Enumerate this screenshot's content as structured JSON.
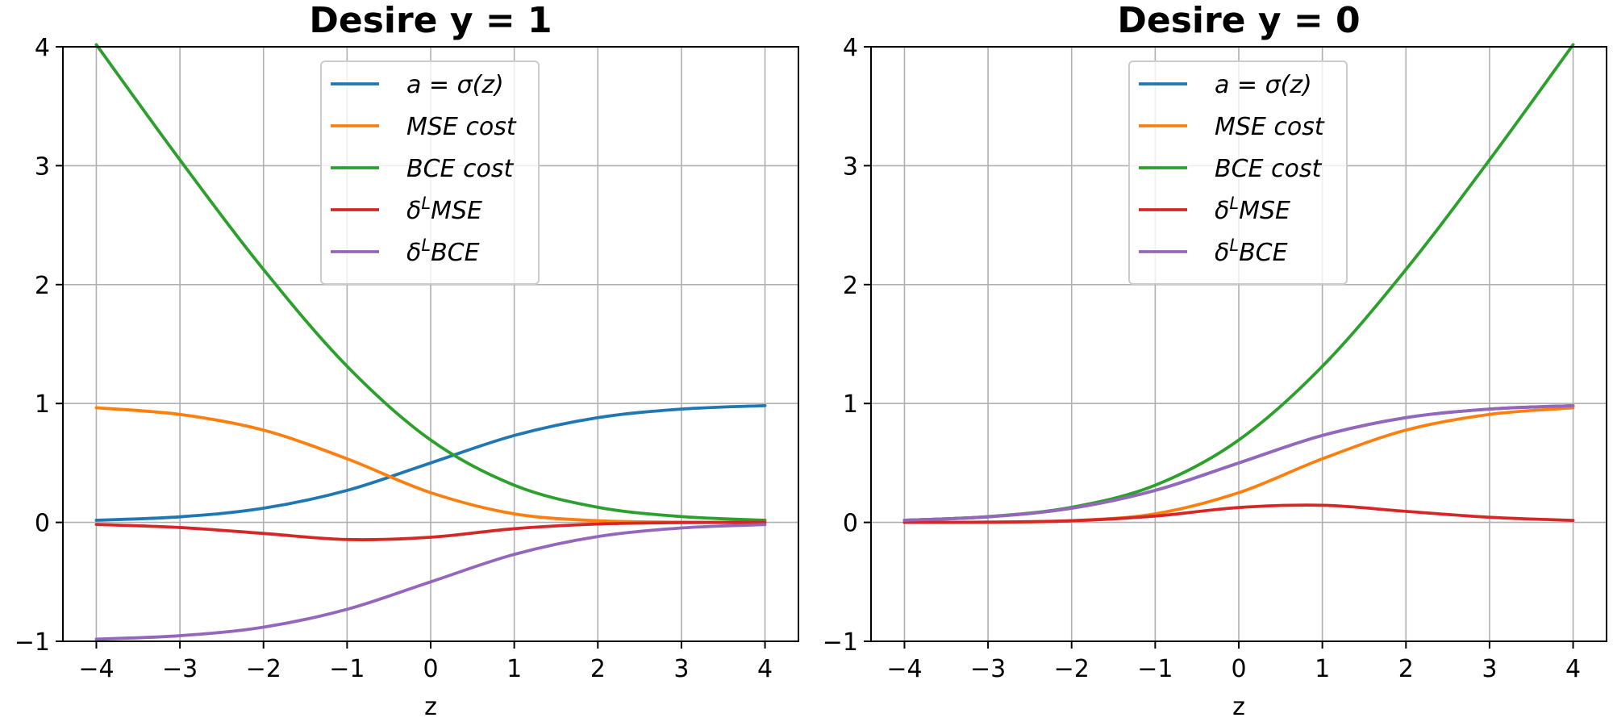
{
  "chart_data": [
    {
      "type": "line",
      "title": "Desire y = 1",
      "xlabel": "z",
      "ylabel": "",
      "xlim": [
        -4.4,
        4.4
      ],
      "ylim": [
        -1,
        4
      ],
      "xticks": [
        "−4",
        "−3",
        "−2",
        "−1",
        "0",
        "1",
        "2",
        "3",
        "4"
      ],
      "yticks": [
        "−1",
        "0",
        "1",
        "2",
        "3",
        "4"
      ],
      "grid": true,
      "legend_position": "upper-center",
      "x": [
        -4,
        -3,
        -2,
        -1,
        0,
        1,
        2,
        3,
        4
      ],
      "series": [
        {
          "name": "a = σ(z)",
          "legend_main": "a = σ(z)",
          "legend_sup": "",
          "legend_rest": "",
          "color": "#1f77b4",
          "values": [
            0.018,
            0.047,
            0.119,
            0.269,
            0.5,
            0.731,
            0.881,
            0.953,
            0.982
          ]
        },
        {
          "name": "MSE cost",
          "legend_main": "MSE cost",
          "legend_sup": "",
          "legend_rest": "",
          "color": "#ff7f0e",
          "values": [
            0.964,
            0.908,
            0.776,
            0.535,
            0.25,
            0.072,
            0.014,
            0.002,
            0.0
          ]
        },
        {
          "name": "BCE cost",
          "legend_main": "BCE cost",
          "legend_sup": "",
          "legend_rest": "",
          "color": "#2ca02c",
          "values": [
            4.018,
            3.049,
            2.127,
            1.313,
            0.693,
            0.313,
            0.127,
            0.049,
            0.018
          ]
        },
        {
          "name": "δLMSE",
          "legend_main": "δ",
          "legend_sup": "L",
          "legend_rest": "MSE",
          "color": "#d62728",
          "values": [
            -0.017,
            -0.043,
            -0.093,
            -0.144,
            -0.125,
            -0.053,
            -0.014,
            -0.002,
            0.0
          ]
        },
        {
          "name": "δLBCE",
          "legend_main": "δ",
          "legend_sup": "L",
          "legend_rest": "BCE",
          "color": "#9467bd",
          "values": [
            -0.982,
            -0.953,
            -0.881,
            -0.731,
            -0.5,
            -0.269,
            -0.119,
            -0.047,
            -0.018
          ]
        }
      ]
    },
    {
      "type": "line",
      "title": "Desire y = 0",
      "xlabel": "z",
      "ylabel": "",
      "xlim": [
        -4.4,
        4.4
      ],
      "ylim": [
        -1,
        4
      ],
      "xticks": [
        "−4",
        "−3",
        "−2",
        "−1",
        "0",
        "1",
        "2",
        "3",
        "4"
      ],
      "yticks": [
        "−1",
        "0",
        "1",
        "2",
        "3",
        "4"
      ],
      "grid": true,
      "legend_position": "upper-center",
      "x": [
        -4,
        -3,
        -2,
        -1,
        0,
        1,
        2,
        3,
        4
      ],
      "series": [
        {
          "name": "a = σ(z)",
          "legend_main": "a = σ(z)",
          "legend_sup": "",
          "legend_rest": "",
          "color": "#1f77b4",
          "values": [
            0.018,
            0.047,
            0.119,
            0.269,
            0.5,
            0.731,
            0.881,
            0.953,
            0.982
          ]
        },
        {
          "name": "MSE cost",
          "legend_main": "MSE cost",
          "legend_sup": "",
          "legend_rest": "",
          "color": "#ff7f0e",
          "values": [
            0.0,
            0.002,
            0.014,
            0.072,
            0.25,
            0.535,
            0.776,
            0.908,
            0.964
          ]
        },
        {
          "name": "BCE cost",
          "legend_main": "BCE cost",
          "legend_sup": "",
          "legend_rest": "",
          "color": "#2ca02c",
          "values": [
            0.018,
            0.049,
            0.127,
            0.313,
            0.693,
            1.313,
            2.127,
            3.049,
            4.018
          ]
        },
        {
          "name": "δLMSE",
          "legend_main": "δ",
          "legend_sup": "L",
          "legend_rest": "MSE",
          "color": "#d62728",
          "values": [
            0.0,
            0.002,
            0.014,
            0.053,
            0.125,
            0.144,
            0.093,
            0.043,
            0.017
          ]
        },
        {
          "name": "δLBCE",
          "legend_main": "δ",
          "legend_sup": "L",
          "legend_rest": "BCE",
          "color": "#9467bd",
          "values": [
            0.018,
            0.047,
            0.119,
            0.269,
            0.5,
            0.731,
            0.881,
            0.953,
            0.982
          ]
        }
      ]
    }
  ]
}
